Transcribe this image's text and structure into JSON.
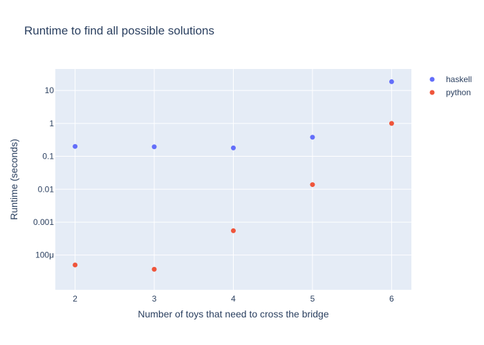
{
  "chart_data": {
    "type": "scatter",
    "title": "Runtime to find all possible solutions",
    "xlabel": "Number of toys that need to cross the bridge",
    "ylabel": "Runtime (seconds)",
    "x_ticks": [
      "2",
      "3",
      "4",
      "5",
      "6"
    ],
    "y_scale": "log",
    "y_ticks": [
      {
        "value": 0.0001,
        "label": "100μ"
      },
      {
        "value": 0.001,
        "label": "0.001"
      },
      {
        "value": 0.01,
        "label": "0.01"
      },
      {
        "value": 0.1,
        "label": "0.1"
      },
      {
        "value": 1,
        "label": "1"
      },
      {
        "value": 10,
        "label": "10"
      }
    ],
    "xlim": [
      1.75,
      6.25
    ],
    "ylim": [
      8.8e-06,
      45
    ],
    "grid": true,
    "legend_position": "top-right",
    "series": [
      {
        "name": "haskell",
        "color": "#636efa",
        "x": [
          2,
          3,
          4,
          5,
          6
        ],
        "y": [
          0.2,
          0.195,
          0.18,
          0.38,
          18.5
        ]
      },
      {
        "name": "python",
        "color": "#ef553b",
        "x": [
          2,
          3,
          4,
          5,
          6
        ],
        "y": [
          5e-05,
          3.7e-05,
          0.00055,
          0.0138,
          1.0
        ]
      }
    ]
  }
}
